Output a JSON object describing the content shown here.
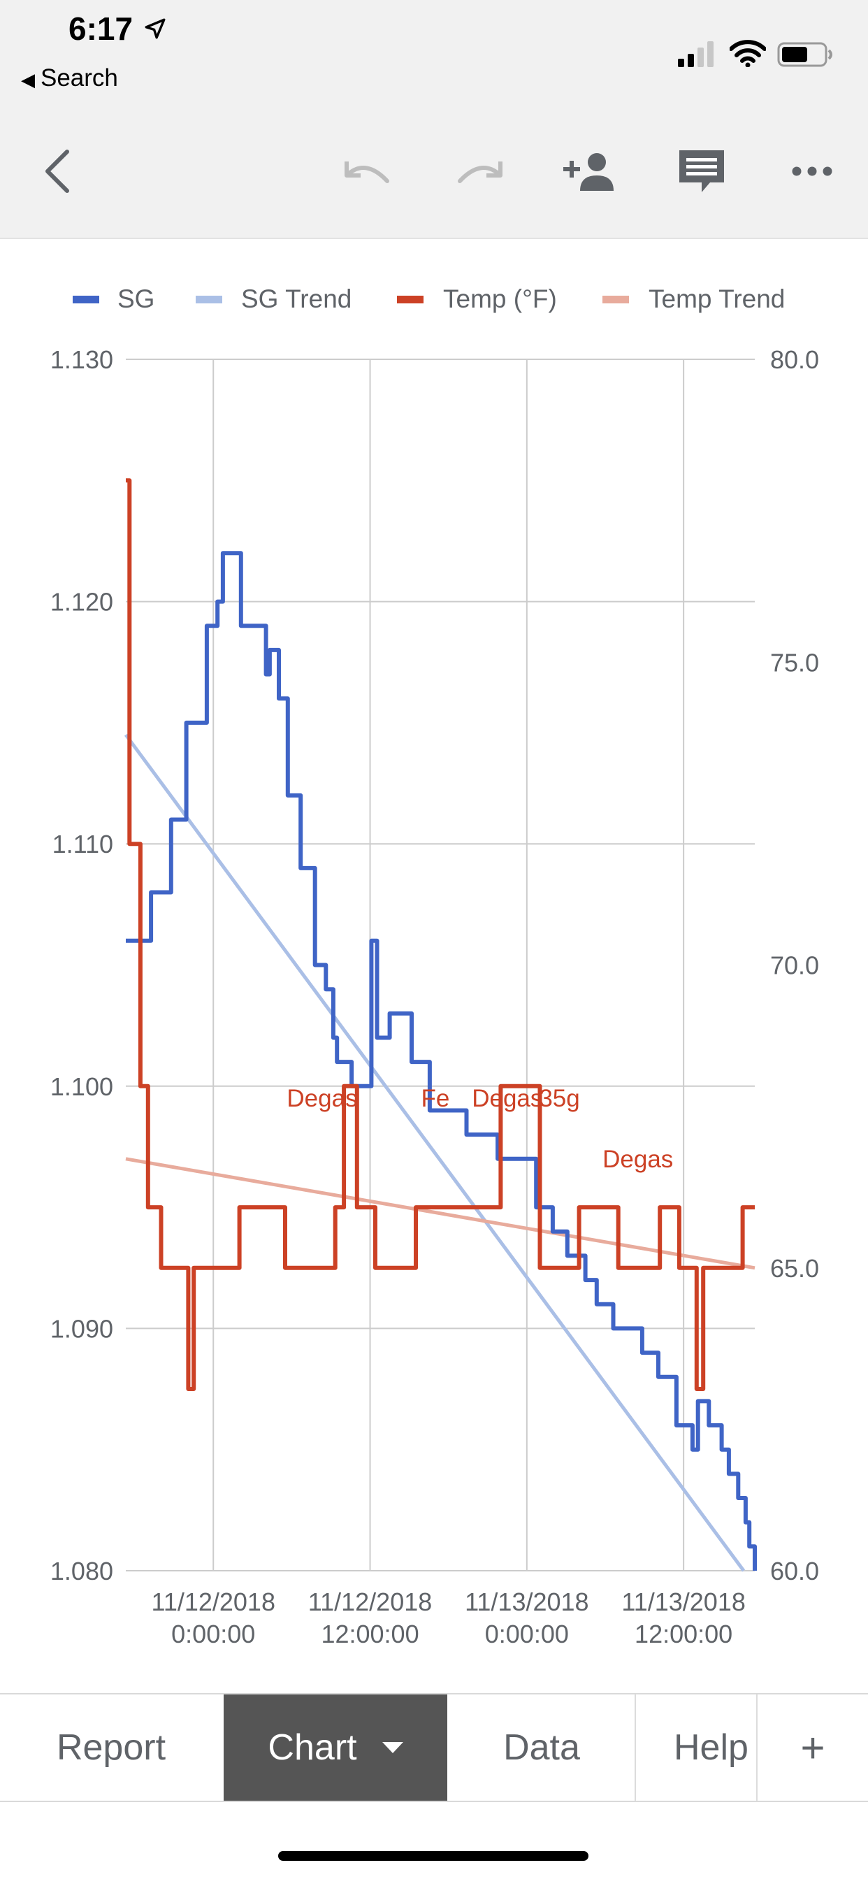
{
  "status_bar": {
    "time": "6:17",
    "back_label": "Search"
  },
  "toolbar": {
    "icons": [
      "back-chevron-icon",
      "undo-icon",
      "redo-icon",
      "add-person-icon",
      "comment-icon",
      "more-icon"
    ]
  },
  "tabs": [
    {
      "label": "Report",
      "active": false
    },
    {
      "label": "Chart",
      "active": true
    },
    {
      "label": "Data",
      "active": false
    },
    {
      "label": "Help",
      "active": false
    },
    {
      "label": "+",
      "active": false
    }
  ],
  "colors": {
    "sg": "#3f64c6",
    "sg_trend": "#aabfe6",
    "temp": "#cc4125",
    "temp_trend": "#e8ab9c"
  },
  "chart_data": {
    "type": "line",
    "x_ticks": [
      "11/12/2018 0:00:00",
      "11/12/2018 12:00:00",
      "11/13/2018 0:00:00",
      "11/13/2018 12:00:00"
    ],
    "x_range": [
      "11/11/2018 17:18",
      "11/13/2018 17:27"
    ],
    "y_left": {
      "range": [
        1.08,
        1.13
      ],
      "ticks": [
        "1.080",
        "1.090",
        "1.100",
        "1.110",
        "1.120",
        "1.130"
      ]
    },
    "y_right": {
      "range": [
        60.0,
        80.0
      ],
      "ticks": [
        "60.0",
        "65.0",
        "70.0",
        "75.0",
        "80.0"
      ]
    },
    "legend": {
      "position": "top",
      "entries": [
        "SG",
        "SG Trend",
        "Temp (°F)",
        "Temp Trend"
      ]
    },
    "grid": true,
    "series": [
      {
        "name": "SG",
        "axis": "left",
        "points": [
          [
            "11/11/2018 17:18",
            1.106
          ],
          [
            "11/11/2018 18:19",
            1.106
          ],
          [
            "11/11/2018 19:14",
            1.108
          ],
          [
            "11/11/2018 20:46",
            1.111
          ],
          [
            "11/11/2018 21:56",
            1.115
          ],
          [
            "11/11/2018 23:30",
            1.119
          ],
          [
            "11/12/2018 0:19",
            1.12
          ],
          [
            "11/12/2018 0:44",
            1.122
          ],
          [
            "11/12/2018 1:26",
            1.122
          ],
          [
            "11/12/2018 2:07",
            1.119
          ],
          [
            "11/12/2018 3:21",
            1.119
          ],
          [
            "11/12/2018 4:02",
            1.117
          ],
          [
            "11/12/2018 4:19",
            1.118
          ],
          [
            "11/12/2018 5:01",
            1.116
          ],
          [
            "11/12/2018 5:42",
            1.112
          ],
          [
            "11/12/2018 6:41",
            1.109
          ],
          [
            "11/12/2018 7:47",
            1.105
          ],
          [
            "11/12/2018 8:37",
            1.104
          ],
          [
            "11/12/2018 9:11",
            1.102
          ],
          [
            "11/12/2018 9:28",
            1.101
          ],
          [
            "11/12/2018 10:35",
            1.1
          ],
          [
            "11/12/2018 11:41",
            1.1
          ],
          [
            "11/12/2018 12:06",
            1.106
          ],
          [
            "11/12/2018 12:32",
            1.102
          ],
          [
            "11/12/2018 13:30",
            1.103
          ],
          [
            "11/12/2018 15:11",
            1.101
          ],
          [
            "11/12/2018 16:34",
            1.099
          ],
          [
            "11/12/2018 18:16",
            1.099
          ],
          [
            "11/12/2018 19:23",
            1.098
          ],
          [
            "11/12/2018 21:46",
            1.097
          ],
          [
            "11/12/2018 23:20",
            1.097
          ],
          [
            "11/13/2018 0:43",
            1.095
          ],
          [
            "11/13/2018 1:59",
            1.094
          ],
          [
            "11/13/2018 3:06",
            1.093
          ],
          [
            "11/13/2018 4:29",
            1.092
          ],
          [
            "11/13/2018 5:21",
            1.091
          ],
          [
            "11/13/2018 6:37",
            1.09
          ],
          [
            "11/13/2018 8:50",
            1.089
          ],
          [
            "11/13/2018 10:04",
            1.088
          ],
          [
            "11/13/2018 11:27",
            1.086
          ],
          [
            "11/13/2018 12:41",
            1.085
          ],
          [
            "11/13/2018 13:06",
            1.087
          ],
          [
            "11/13/2018 13:56",
            1.086
          ],
          [
            "11/13/2018 14:55",
            1.085
          ],
          [
            "11/13/2018 15:28",
            1.084
          ],
          [
            "11/13/2018 16:11",
            1.083
          ],
          [
            "11/13/2018 16:45",
            1.082
          ],
          [
            "11/13/2018 17:02",
            1.081
          ],
          [
            "11/13/2018 17:27",
            1.08
          ]
        ]
      },
      {
        "name": "SG Trend",
        "axis": "left",
        "points": [
          [
            "11/11/2018 17:18",
            1.1145
          ],
          [
            "11/13/2018 16:36",
            1.08
          ]
        ]
      },
      {
        "name": "Temp (°F)",
        "axis": "right",
        "points": [
          [
            "11/11/2018 17:18",
            78.0
          ],
          [
            "11/11/2018 17:35",
            72.0
          ],
          [
            "11/11/2018 18:25",
            68.0
          ],
          [
            "11/11/2018 19:00",
            66.0
          ],
          [
            "11/11/2018 20:00",
            65.0
          ],
          [
            "11/11/2018 21:50",
            65.0
          ],
          [
            "11/11/2018 22:05",
            63.0
          ],
          [
            "11/11/2018 22:30",
            65.0
          ],
          [
            "11/12/2018 0:31",
            65.0
          ],
          [
            "11/12/2018 2:00",
            66.0
          ],
          [
            "11/12/2018 3:33",
            66.0
          ],
          [
            "11/12/2018 4:48",
            66.0
          ],
          [
            "11/12/2018 5:30",
            65.0
          ],
          [
            "11/12/2018 9:20",
            66.0
          ],
          [
            "11/12/2018 10:00",
            68.0
          ],
          [
            "11/12/2018 11:00",
            66.0
          ],
          [
            "11/12/2018 11:40",
            66.0
          ],
          [
            "11/12/2018 12:24",
            65.0
          ],
          [
            "11/12/2018 14:00",
            65.0
          ],
          [
            "11/12/2018 15:30",
            66.0
          ],
          [
            "11/12/2018 16:40",
            66.0
          ],
          [
            "11/12/2018 20:36",
            66.0
          ],
          [
            "11/12/2018 22:00",
            68.0
          ],
          [
            "11/12/2018 23:20",
            68.0
          ],
          [
            "11/13/2018 1:00",
            65.0
          ],
          [
            "11/13/2018 2:30",
            65.0
          ],
          [
            "11/13/2018 4:00",
            66.0
          ],
          [
            "11/13/2018 5:40",
            66.0
          ],
          [
            "11/13/2018 7:00",
            65.0
          ],
          [
            "11/13/2018 9:00",
            65.0
          ],
          [
            "11/13/2018 10:11",
            66.0
          ],
          [
            "11/13/2018 11:40",
            65.0
          ],
          [
            "11/13/2018 13:00",
            63.0
          ],
          [
            "11/13/2018 13:30",
            65.0
          ],
          [
            "11/13/2018 14:30",
            65.0
          ],
          [
            "11/13/2018 16:31",
            66.0
          ],
          [
            "11/13/2018 17:27",
            66.0
          ]
        ]
      },
      {
        "name": "Temp Trend",
        "axis": "right",
        "points": [
          [
            "11/11/2018 17:18",
            66.8
          ],
          [
            "11/13/2018 17:27",
            65.0
          ]
        ]
      }
    ],
    "annotations": [
      {
        "text": "Degas",
        "x": "11/12/2018 8:20",
        "y": 1.0995,
        "axis": "left",
        "color": "#cc4125"
      },
      {
        "text": "Fe",
        "x": "11/12/2018 17:00",
        "y": 1.0995,
        "axis": "left",
        "color": "#cc4125"
      },
      {
        "text": "Degas",
        "x": "11/12/2018 22:30",
        "y": 1.0995,
        "axis": "left",
        "color": "#cc4125"
      },
      {
        "text": "35g",
        "x": "11/13/2018 2:30",
        "y": 1.0995,
        "axis": "left",
        "color": "#cc4125"
      },
      {
        "text": "Degas",
        "x": "11/13/2018 8:30",
        "y": 1.097,
        "axis": "left",
        "color": "#cc4125"
      }
    ]
  }
}
